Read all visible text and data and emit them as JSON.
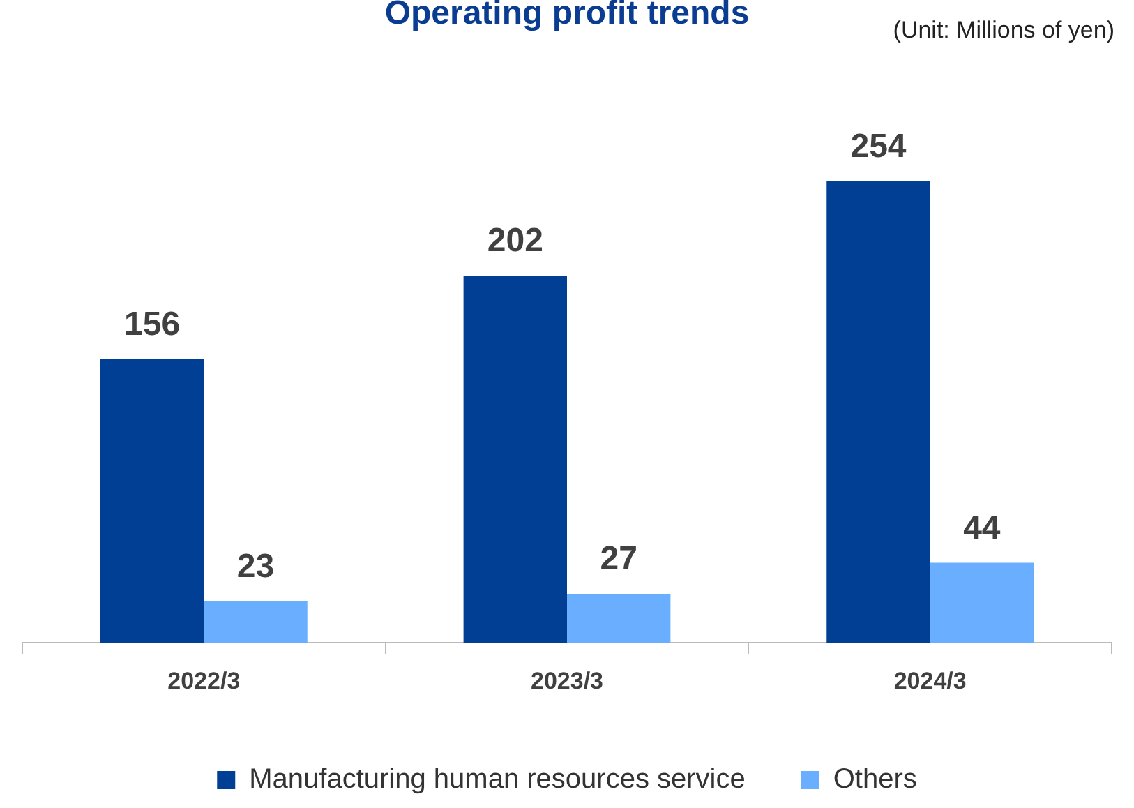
{
  "chart_data": {
    "type": "bar",
    "title": "Operating profit trends",
    "annotations": [
      "(Unit: Millions of yen)"
    ],
    "categories": [
      "2022/3",
      "2023/3",
      "2024/3"
    ],
    "series": [
      {
        "name": "Manufacturing human resources service",
        "color": "#003f94",
        "values": [
          156,
          202,
          254
        ]
      },
      {
        "name": "Others",
        "color": "#6aaeff",
        "values": [
          23,
          27,
          44
        ]
      }
    ],
    "data_labels": true,
    "legend": "bottom",
    "grid": false
  }
}
